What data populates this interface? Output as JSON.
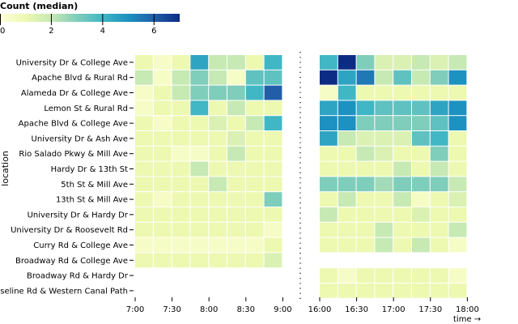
{
  "legend": {
    "title": "Count (median)",
    "ticks": [
      "0",
      "2",
      "4",
      "6"
    ],
    "domain": [
      0,
      7
    ]
  },
  "chart_data": {
    "type": "heatmap",
    "ylabel": "location",
    "xlabel": "time →",
    "morning_ticks": [
      "7:00",
      "7:30",
      "8:00",
      "8:30",
      "9:00"
    ],
    "evening_ticks": [
      "16:00",
      "16:30",
      "17:00",
      "17:30",
      "18:00"
    ],
    "locations": [
      "University Dr & College Ave",
      "Apache Blvd & Rural Rd",
      "Alameda Dr & College Ave",
      "Lemon St & Rural Rd",
      "Apache Blvd & College Ave",
      "University Dr & Ash Ave",
      "Rio Salado Pkwy & Mill Ave",
      "Hardy Dr & 13th St",
      "5th St & Mill Ave",
      "13th St & Mill Ave",
      "University Dr & Hardy Dr",
      "University Dr & Roosevelt Rd",
      "Curry Rd & College Ave",
      "Broadway Rd & College Ave",
      "Broadway Rd & Hardy Dr",
      "Baseline Rd & Western Canal Path"
    ],
    "morning_slots": [
      "7:00",
      "7:15",
      "7:30",
      "7:45",
      "8:00",
      "8:15",
      "8:30",
      "8:45"
    ],
    "evening_slots": [
      "16:00",
      "16:15",
      "16:30",
      "16:45",
      "17:00",
      "17:15",
      "17:30",
      "17:45"
    ],
    "morning_values": [
      [
        1,
        0.5,
        1,
        4.5,
        2,
        2,
        1,
        4
      ],
      [
        2,
        0.5,
        2,
        3,
        2,
        0.5,
        3.5,
        3.5
      ],
      [
        0.5,
        1,
        2,
        3,
        3,
        3,
        4,
        6
      ],
      [
        0.5,
        1,
        1,
        4,
        1,
        2,
        1,
        1
      ],
      [
        1,
        0.5,
        1,
        1,
        1.5,
        1,
        2,
        4
      ],
      [
        1,
        1,
        1,
        1,
        1,
        1.5,
        1,
        1
      ],
      [
        1,
        1,
        0.5,
        0.5,
        1,
        2,
        1,
        1
      ],
      [
        1,
        1,
        1,
        2,
        1,
        1,
        1,
        1
      ],
      [
        1,
        1,
        1,
        1,
        2,
        1,
        1,
        1
      ],
      [
        1,
        0.5,
        1,
        1,
        1,
        1,
        1,
        3
      ],
      [
        1,
        1,
        1,
        1,
        1,
        1,
        1,
        1
      ],
      [
        1,
        1,
        1,
        1,
        1,
        1,
        1,
        0.5
      ],
      [
        0.5,
        0.5,
        0.5,
        0.5,
        0.5,
        0.5,
        0.5,
        1
      ],
      [
        1,
        1,
        1,
        1,
        1,
        1,
        1,
        1.5
      ],
      [
        null,
        null,
        null,
        null,
        null,
        null,
        null,
        null
      ],
      [
        null,
        null,
        null,
        null,
        null,
        null,
        null,
        null
      ]
    ],
    "evening_values": [
      [
        4,
        7,
        3,
        1.5,
        1.5,
        2,
        1.5,
        2
      ],
      [
        7,
        4.5,
        5.5,
        2,
        3.5,
        2,
        3,
        5
      ],
      [
        0.5,
        4,
        1,
        1,
        1,
        1,
        1,
        1
      ],
      [
        4.5,
        5,
        4,
        3.5,
        3.5,
        3.5,
        4.5,
        5
      ],
      [
        5,
        5,
        3,
        3,
        3,
        3,
        3.5,
        5
      ],
      [
        4.5,
        2,
        1.5,
        1.5,
        1.5,
        3.5,
        4,
        1
      ],
      [
        1,
        1,
        2,
        1.5,
        1,
        1,
        3,
        1
      ],
      [
        1,
        1,
        1,
        1,
        2,
        1,
        2,
        1
      ],
      [
        3,
        3,
        3,
        2.5,
        3,
        3,
        3,
        2
      ],
      [
        1,
        2,
        1,
        1,
        2,
        0.5,
        1,
        1.5
      ],
      [
        2,
        1,
        1,
        1,
        1,
        1.5,
        1,
        1
      ],
      [
        1,
        1,
        1,
        2,
        1,
        1,
        1,
        2
      ],
      [
        1,
        1,
        1,
        2,
        1,
        2,
        1,
        0.5
      ],
      [
        null,
        null,
        null,
        null,
        null,
        null,
        null,
        null
      ],
      [
        1,
        0.5,
        1,
        1,
        1,
        1,
        1,
        0.5
      ],
      [
        1,
        1,
        1,
        1,
        1,
        1,
        1,
        1
      ]
    ],
    "color_scale": [
      "#ffffd9",
      "#edf8b1",
      "#c7e9b4",
      "#7fcdbb",
      "#41b6c4",
      "#1d91c0",
      "#225ea8",
      "#0c2c84"
    ]
  }
}
